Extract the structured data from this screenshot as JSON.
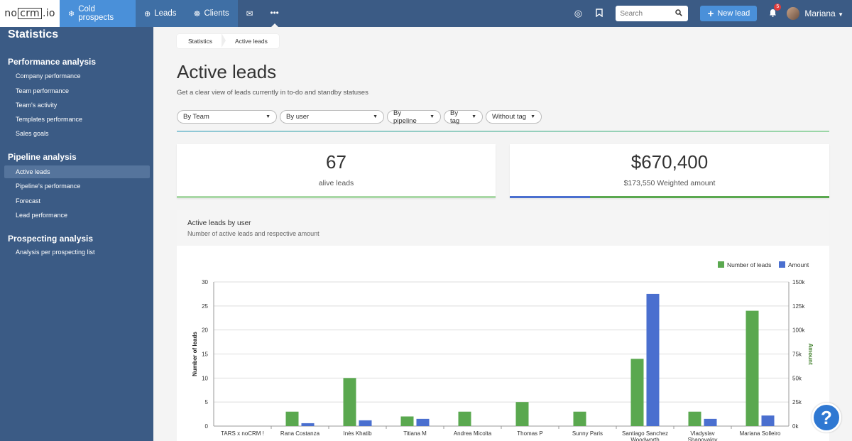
{
  "topbar": {
    "logo": [
      "no",
      "crm",
      ".io"
    ],
    "tabs": [
      {
        "label": "Cold prospects",
        "icon": "snowflake-icon"
      },
      {
        "label": "Leads",
        "icon": "target-icon"
      },
      {
        "label": "Clients",
        "icon": "handshake-icon"
      }
    ],
    "search_placeholder": "Search",
    "new_lead_label": "New lead",
    "notification_count": "5",
    "user_name": "Mariana"
  },
  "sidebar": {
    "title": "Statistics",
    "sections": [
      {
        "title": "Performance analysis",
        "items": [
          "Company performance",
          "Team performance",
          "Team's activity",
          "Templates performance",
          "Sales goals"
        ]
      },
      {
        "title": "Pipeline analysis",
        "items": [
          "Active leads",
          "Pipeline's performance",
          "Forecast",
          "Lead performance"
        ]
      },
      {
        "title": "Prospecting analysis",
        "items": [
          "Analysis per prospecting list"
        ]
      }
    ],
    "active_item": "Active leads"
  },
  "breadcrumb": [
    "Statistics",
    "Active leads"
  ],
  "page": {
    "title": "Active leads",
    "subtitle": "Get a clear view of leads currently in to-do and standby statuses"
  },
  "filters": [
    "By Team",
    "By user",
    "By pipeline",
    "By tag",
    "Without tag"
  ],
  "kpis": {
    "leads_value": "67",
    "leads_label": "alive leads",
    "amount_value": "$670,400",
    "amount_label": "$173,550 Weighted amount"
  },
  "colors": {
    "green": "#5aa84f",
    "blue": "#4a6fcf",
    "nav": "#3b5b85",
    "accent": "#4a90d9"
  },
  "chart_data": {
    "type": "bar",
    "title": "Active leads by user",
    "subtitle": "Number of active leads and respective amount",
    "categories": [
      "TARS x noCRM !",
      "Rana Costanza",
      "Inès Khatib",
      "Titiana M",
      "Andrea Micolta",
      "Thomas P",
      "Sunny Paris",
      "Santiago Sanchez Woodworth",
      "Vladyslav Shapovalov",
      "Mariana Solleiro"
    ],
    "series": [
      {
        "name": "Number of leads",
        "axis": "left",
        "color": "#5aa84f",
        "values": [
          0,
          3,
          10,
          2,
          3,
          5,
          3,
          14,
          3,
          24
        ]
      },
      {
        "name": "Amount",
        "axis": "right",
        "color": "#4a6fcf",
        "values": [
          0,
          3000,
          6000,
          7500,
          0,
          0,
          0,
          137500,
          7500,
          11000
        ]
      }
    ],
    "ylabel": "Number of leads",
    "y2label": "Amount",
    "ylim": [
      0,
      30
    ],
    "y2lim": [
      0,
      150000
    ],
    "yticks": [
      "0",
      "5",
      "10",
      "15",
      "20",
      "25",
      "30"
    ],
    "y2ticks": [
      "0k",
      "25k",
      "50k",
      "75k",
      "100k",
      "125k",
      "150k"
    ],
    "legend": "top-right",
    "grid": true
  }
}
